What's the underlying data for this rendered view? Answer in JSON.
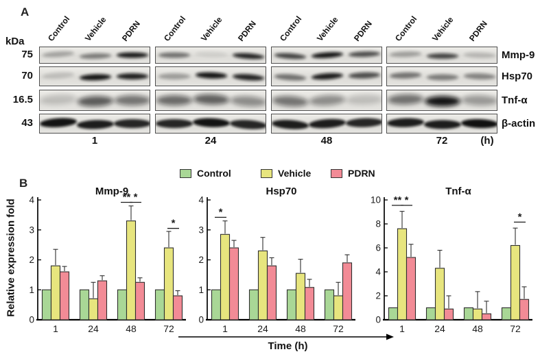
{
  "panel_a": {
    "label": "A",
    "kda_label": "kDa",
    "lane_labels": [
      "Control",
      "Vehicle",
      "PDRN"
    ],
    "time_points": [
      "1",
      "24",
      "48",
      "72"
    ],
    "time_unit": "(h)",
    "rows": [
      {
        "protein": "Mmp-9",
        "kda": "75",
        "band_intensities": [
          [
            0.28,
            0.45,
            0.92
          ],
          [
            0.5,
            0.07,
            0.88
          ],
          [
            0.72,
            0.95,
            0.68
          ],
          [
            0.3,
            0.72,
            0.18
          ]
        ]
      },
      {
        "protein": "Hsp70",
        "kda": "70",
        "band_intensities": [
          [
            0.15,
            0.95,
            0.9
          ],
          [
            0.3,
            0.95,
            0.88
          ],
          [
            0.5,
            0.92,
            0.68
          ],
          [
            0.5,
            0.45,
            0.42
          ]
        ]
      },
      {
        "protein": "Tnf-α",
        "kda": "16.5",
        "band_intensities": [
          [
            0.15,
            0.62,
            0.5
          ],
          [
            0.55,
            0.6,
            0.38
          ],
          [
            0.5,
            0.38,
            0.15
          ],
          [
            0.52,
            0.97,
            0.32
          ]
        ]
      },
      {
        "protein": "β-actin",
        "kda": "43",
        "band_intensities": [
          [
            0.97,
            0.92,
            0.88
          ],
          [
            0.88,
            0.97,
            0.88
          ],
          [
            0.92,
            0.92,
            0.88
          ],
          [
            0.92,
            0.92,
            0.98
          ]
        ]
      }
    ]
  },
  "panel_b": {
    "label": "B",
    "ylabel": "Relative expression fold",
    "xlabel": "Time (h)",
    "legend": [
      {
        "label": "Control",
        "color": "#a9d796"
      },
      {
        "label": "Vehicle",
        "color": "#e7e57e"
      },
      {
        "label": "PDRN",
        "color": "#f28b96"
      }
    ]
  },
  "chart_data": [
    {
      "type": "bar",
      "title": "Mmp-9",
      "categories": [
        "1",
        "24",
        "48",
        "72"
      ],
      "xlabel": "Time (h)",
      "ylabel": "Relative expression fold",
      "ylim": [
        0,
        4
      ],
      "yticks": [
        0,
        1,
        2,
        3,
        4
      ],
      "series": [
        {
          "name": "Control",
          "color": "#a9d796",
          "values": [
            1.0,
            1.0,
            1.0,
            1.0
          ],
          "errors": [
            0,
            0,
            0,
            0
          ]
        },
        {
          "name": "Vehicle",
          "color": "#e7e57e",
          "values": [
            1.8,
            0.7,
            3.3,
            2.4
          ],
          "errors": [
            0.55,
            0.55,
            0.5,
            0.55
          ]
        },
        {
          "name": "PDRN",
          "color": "#f28b96",
          "values": [
            1.6,
            1.3,
            1.25,
            0.8
          ],
          "errors": [
            0.18,
            0.17,
            0.15,
            0.17
          ]
        }
      ],
      "significance": [
        {
          "category": "48",
          "label": "**",
          "between": [
            "Control",
            "Vehicle"
          ],
          "y": 3.92
        },
        {
          "category": "48",
          "label": "*",
          "between": [
            "Vehicle",
            "PDRN"
          ],
          "y": 3.92
        },
        {
          "category": "72",
          "label": "*",
          "between": [
            "Vehicle",
            "PDRN"
          ],
          "y": 3.05
        }
      ]
    },
    {
      "type": "bar",
      "title": "Hsp70",
      "categories": [
        "1",
        "24",
        "48",
        "72"
      ],
      "xlabel": "Time (h)",
      "ylabel": "Relative expression fold",
      "ylim": [
        0,
        4
      ],
      "yticks": [
        0,
        1,
        2,
        3,
        4
      ],
      "series": [
        {
          "name": "Control",
          "color": "#a9d796",
          "values": [
            1.0,
            1.0,
            1.0,
            1.0
          ],
          "errors": [
            0,
            0,
            0,
            0
          ]
        },
        {
          "name": "Vehicle",
          "color": "#e7e57e",
          "values": [
            2.85,
            2.3,
            1.55,
            0.8
          ],
          "errors": [
            0.45,
            0.45,
            0.47,
            0.45
          ]
        },
        {
          "name": "PDRN",
          "color": "#f28b96",
          "values": [
            2.4,
            1.8,
            1.08,
            1.9
          ],
          "errors": [
            0.25,
            0.27,
            0.27,
            0.27
          ]
        }
      ],
      "significance": [
        {
          "category": "1",
          "label": "*",
          "between": [
            "Control",
            "Vehicle"
          ],
          "y": 3.42
        }
      ]
    },
    {
      "type": "bar",
      "title": "Tnf-α",
      "categories": [
        "1",
        "24",
        "48",
        "72"
      ],
      "xlabel": "Time (h)",
      "ylabel": "Relative expression fold",
      "ylim": [
        0,
        10
      ],
      "yticks": [
        0,
        2,
        4,
        6,
        8,
        10
      ],
      "series": [
        {
          "name": "Control",
          "color": "#a9d796",
          "values": [
            1.0,
            1.0,
            1.0,
            1.0
          ],
          "errors": [
            0,
            0,
            0,
            0
          ]
        },
        {
          "name": "Vehicle",
          "color": "#e7e57e",
          "values": [
            7.6,
            4.3,
            0.9,
            6.2
          ],
          "errors": [
            1.45,
            1.5,
            1.45,
            1.45
          ]
        },
        {
          "name": "PDRN",
          "color": "#f28b96",
          "values": [
            5.2,
            0.9,
            0.5,
            1.7
          ],
          "errors": [
            1.1,
            1.1,
            1.05,
            1.05
          ]
        }
      ],
      "significance": [
        {
          "category": "1",
          "label": "**",
          "between": [
            "Control",
            "Vehicle"
          ],
          "y": 9.55
        },
        {
          "category": "1",
          "label": "*",
          "between": [
            "Vehicle",
            "PDRN"
          ],
          "y": 9.55
        },
        {
          "category": "72",
          "label": "*",
          "between": [
            "Vehicle",
            "PDRN"
          ],
          "y": 8.15
        }
      ]
    }
  ]
}
